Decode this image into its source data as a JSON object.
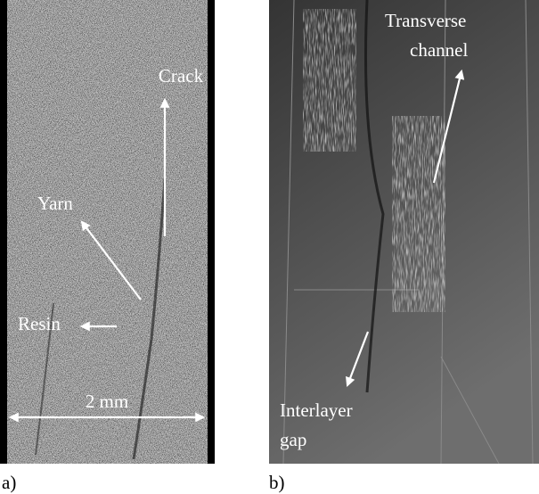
{
  "panels": [
    {
      "label": "a)",
      "annotations": {
        "crack": "Crack",
        "yarn": "Yarn",
        "resin": "Resin",
        "scale": "2 mm"
      }
    },
    {
      "label": "b)",
      "annotations": {
        "channel": [
          "Transverse",
          "channel"
        ],
        "gap": [
          "Interlayer",
          "gap"
        ]
      }
    }
  ]
}
